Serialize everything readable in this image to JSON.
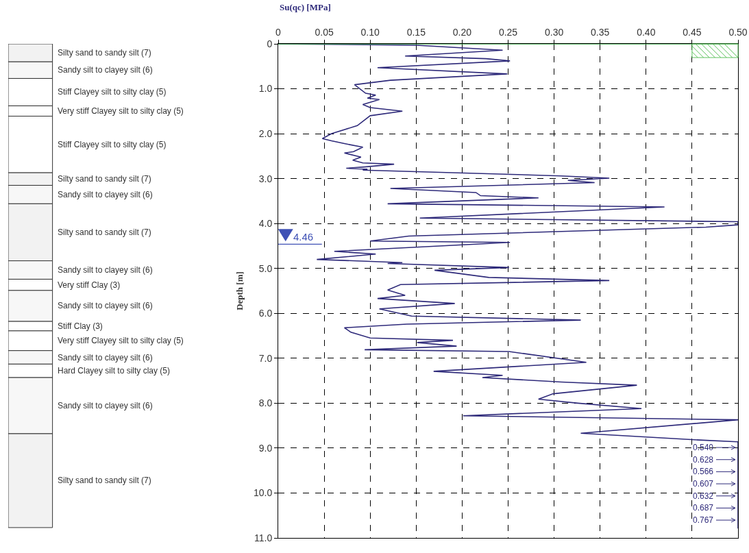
{
  "chart_data": [
    {
      "type": "bar",
      "stacked": true,
      "categories": [
        null
      ],
      "ylim": [
        11,
        0
      ],
      "tick_labels": false,
      "legend": false,
      "series": [
        {
          "name": "Silty sand to sandy silt (7)",
          "color": "#f2f2f2",
          "values": [
            0.4
          ]
        },
        {
          "name": "Sandy silt to clayey silt (6)",
          "color": "#f7f7f7",
          "values": [
            0.37
          ]
        },
        {
          "name": "Stiff Clayey silt to silty clay (5)",
          "color": "#ffffff",
          "values": [
            0.61
          ]
        },
        {
          "name": "Very stiff Clayey silt to silty clay (5)",
          "color": "#ffffff",
          "values": [
            0.23
          ]
        },
        {
          "name": "Stiff Clayey silt to silty clay (5)",
          "color": "#ffffff",
          "values": [
            1.26
          ]
        },
        {
          "name": "Silty sand to sandy silt (7)",
          "color": "#f2f2f2",
          "values": [
            0.28
          ]
        },
        {
          "name": "Sandy silt to clayey silt (6)",
          "color": "#f7f7f7",
          "values": [
            0.41
          ]
        },
        {
          "name": "Silty sand to sandy silt (7)",
          "color": "#f2f2f2",
          "values": [
            1.27
          ]
        },
        {
          "name": "Sandy silt to clayey silt (6)",
          "color": "#f7f7f7",
          "values": [
            0.41
          ]
        },
        {
          "name": "Very stiff Clay (3)",
          "color": "#ffffff",
          "values": [
            0.25
          ]
        },
        {
          "name": "Sandy silt to clayey silt (6)",
          "color": "#f7f7f7",
          "values": [
            0.69
          ]
        },
        {
          "name": "Stiff Clay (3)",
          "color": "#ffffff",
          "values": [
            0.21
          ]
        },
        {
          "name": "Very stiff Clayey silt to silty clay (5)",
          "color": "#ffffff",
          "values": [
            0.44
          ]
        },
        {
          "name": "Sandy silt to clayey silt (6)",
          "color": "#f7f7f7",
          "values": [
            0.3
          ]
        },
        {
          "name": "Hard Clayey silt to silty clay (5)",
          "color": "#ffffff",
          "values": [
            0.3
          ]
        },
        {
          "name": "Sandy silt to clayey silt (6)",
          "color": "#f7f7f7",
          "values": [
            1.25
          ]
        },
        {
          "name": "Silty sand to sandy silt (7)",
          "color": "#f2f2f2",
          "values": [
            2.09
          ]
        }
      ]
    },
    {
      "type": "line",
      "orientation": "horizontal",
      "xlabel": "Su(qc) [MPa]",
      "ylabel": "Depth [m]",
      "xlim": [
        0,
        0.5
      ],
      "xticks": [
        0,
        0.05,
        {
          "value": 0.1,
          "label": "0.10"
        },
        0.15,
        {
          "value": 0.2,
          "label": "0.20"
        },
        0.25,
        {
          "value": 0.3,
          "label": "0.30"
        },
        0.35,
        {
          "value": 0.4,
          "label": "0.40"
        },
        0.45,
        {
          "value": 0.5,
          "label": "0.50"
        }
      ],
      "ylim": [
        11,
        0
      ],
      "yticks": [
        0,
        {
          "value": 1,
          "label": "1.0"
        },
        {
          "value": 2,
          "label": "2.0"
        },
        {
          "value": 3,
          "label": "3.0"
        },
        {
          "value": 4,
          "label": "4.0"
        },
        {
          "value": 5,
          "label": "5.0"
        },
        {
          "value": 6,
          "label": "6.0"
        },
        {
          "value": 7,
          "label": "7.0"
        },
        {
          "value": 8,
          "label": "8.0"
        },
        {
          "value": 9,
          "label": "9.0"
        },
        {
          "value": 10,
          "label": "10.0"
        },
        {
          "value": 11,
          "label": "11.0"
        }
      ],
      "grid": true,
      "line_style": "solid",
      "marker": "none",
      "series": [
        {
          "color": "#2e2a7a",
          "x": [
            0,
            0.03,
            0.14,
            0.27,
            0.33,
            0.38,
            0.53,
            0.67,
            0.81,
            0.91,
            1.1,
            1.14,
            1.21,
            1.24,
            1.35,
            1.42,
            1.5,
            1.6,
            1.82,
            2.0,
            2.11,
            2.16,
            2.22,
            2.3,
            2.4,
            2.43,
            2.52,
            2.59,
            2.65,
            2.68,
            2.74,
            2.77,
            2.79,
            2.81,
            2.94,
            2.99,
            3.04,
            3.09,
            3.22,
            3.31,
            3.38,
            3.43,
            3.56,
            3.63,
            3.88,
            3.96,
            4.03,
            4.08,
            4.28,
            4.39,
            4.42,
            4.62,
            4.68,
            4.8,
            4.87,
            4.89,
            4.98,
            5.04,
            5.2,
            5.27,
            5.36,
            5.48,
            5.6,
            5.67,
            5.78,
            5.9,
            6.06,
            6.15,
            6.24,
            6.32,
            6.42,
            6.55,
            6.6,
            6.65,
            6.73,
            6.81,
            6.85,
            7.09,
            7.29,
            7.38,
            7.43,
            7.53,
            7.6,
            7.79,
            7.91,
            8.0,
            8.12,
            8.28,
            8.37,
            8.67,
            8.82,
            8.86,
            10.79
          ],
          "values": [
            0,
            0.15,
            0.244,
            0.138,
            0.226,
            0.252,
            0.108,
            0.249,
            0.122,
            0.083,
            0.095,
            0.106,
            0.097,
            0.11,
            0.092,
            0.1,
            0.135,
            0.1,
            0.086,
            0.058,
            0.048,
            0.058,
            0.072,
            0.092,
            0.082,
            0.072,
            0.09,
            0.081,
            0.092,
            0.126,
            0.094,
            0.074,
            0.097,
            0.092,
            0.308,
            0.36,
            0.315,
            0.344,
            0.122,
            0.215,
            0.22,
            0.283,
            0.119,
            0.42,
            0.154,
            0.5,
            0.5,
            0.465,
            0.142,
            0.1,
            0.252,
            0.061,
            0.106,
            0.042,
            0.135,
            0.119,
            0.251,
            0.17,
            0.229,
            0.36,
            0.133,
            0.119,
            0.138,
            0.108,
            0.192,
            0.11,
            0.145,
            0.329,
            0.14,
            0.072,
            0.079,
            0.1,
            0.19,
            0.151,
            0.194,
            0.094,
            0.251,
            0.335,
            0.169,
            0.244,
            0.222,
            0.308,
            0.39,
            0.299,
            0.283,
            0.326,
            0.395,
            0.201,
            0.5,
            0.329,
            0.458,
            0.5,
            0.5
          ]
        }
      ],
      "ref_lines": [
        {
          "axis": "y",
          "value": 0,
          "color": "#3cb44b"
        },
        {
          "axis": "y",
          "value": 4.46,
          "label": "4.46",
          "color": "#3f51b5"
        }
      ],
      "annotations": [
        "0.540",
        "0.628",
        "0.566",
        "0.607",
        "0.632",
        "0.687",
        "0.767"
      ]
    }
  ]
}
